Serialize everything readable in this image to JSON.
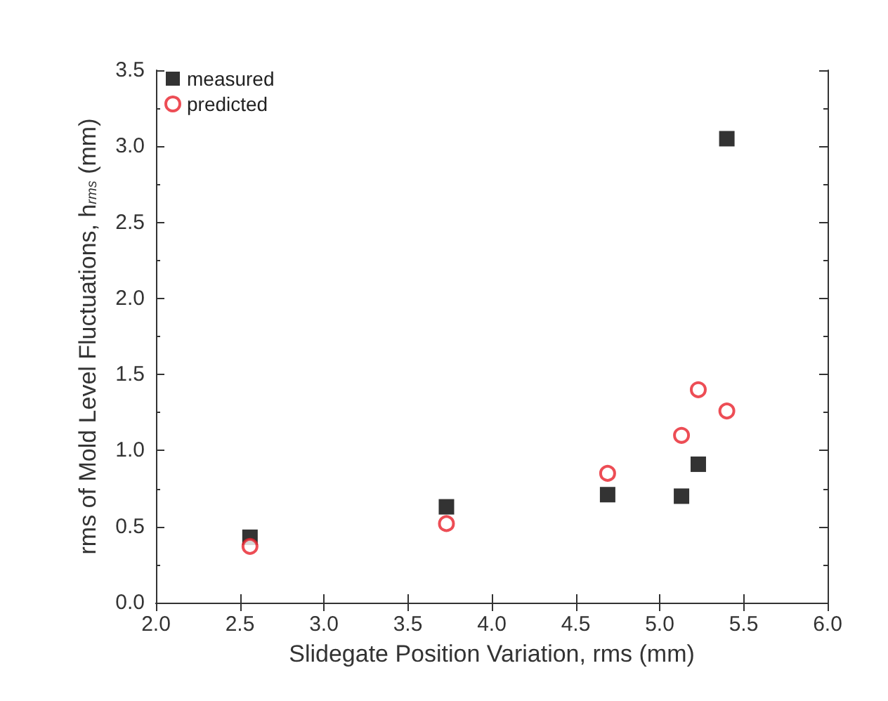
{
  "chart_data": {
    "type": "scatter",
    "xlabel": "Slidegate Position Variation, rms (mm)",
    "ylabel": "rms of Mold Level Fluctuations, h$_{rms}$ (mm)",
    "x": [
      2.56,
      3.73,
      4.69,
      5.13,
      5.23,
      5.4
    ],
    "series": [
      {
        "name": "measured",
        "color": "#000000",
        "marker": "square",
        "values": [
          0.43,
          0.63,
          0.71,
          0.7,
          0.91,
          3.05
        ]
      },
      {
        "name": "predicted",
        "color": "#e8202a",
        "marker": "circle",
        "values": [
          0.37,
          0.52,
          0.85,
          1.1,
          1.4,
          1.26
        ]
      }
    ],
    "xlim": [
      2.0,
      6.0
    ],
    "xticks": [
      {
        "value": 2,
        "label": "2.0"
      },
      {
        "value": 2.5,
        "label": "2.5"
      },
      {
        "value": 3,
        "label": "3.0"
      },
      {
        "value": 3.5,
        "label": "3.5"
      },
      {
        "value": 4,
        "label": "4.0"
      },
      {
        "value": 4.5,
        "label": "4.5"
      },
      {
        "value": 5,
        "label": "5.0"
      },
      {
        "value": 5.5,
        "label": "5.5"
      },
      {
        "value": 6,
        "label": "6.0"
      }
    ],
    "ylim": [
      0,
      3.5
    ],
    "yticks": [
      {
        "value": 0,
        "label": "0.0"
      },
      {
        "value": 0.5,
        "label": "0.5"
      },
      {
        "value": 1,
        "label": "1.0"
      },
      {
        "value": 1.5,
        "label": "1.5"
      },
      {
        "value": 2,
        "label": "2.0"
      },
      {
        "value": 2.5,
        "label": "2.5"
      },
      {
        "value": 3,
        "label": "3.0"
      },
      {
        "value": 3.5,
        "label": "3.5"
      }
    ],
    "legend": "top left",
    "grid": false
  }
}
